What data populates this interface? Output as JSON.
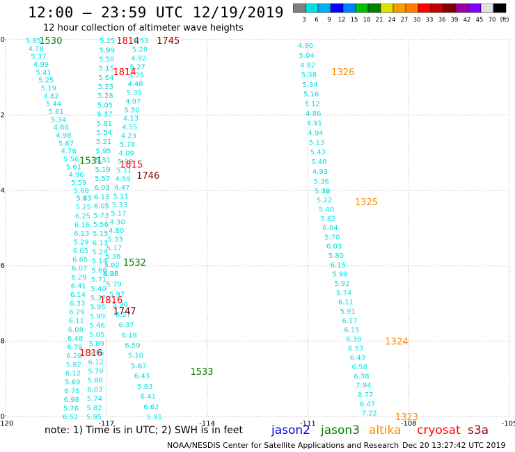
{
  "header": {
    "title": "12:00 – 23:59 UTC 12/19/2019",
    "subtitle": "12 hour collection of altimeter wave heights"
  },
  "colorbar": {
    "colors": [
      "#808080",
      "#00e0e0",
      "#00b0f0",
      "#0000ff",
      "#0080ff",
      "#00c000",
      "#008000",
      "#e0e000",
      "#f0a000",
      "#ff8000",
      "#ff0000",
      "#c00000",
      "#800000",
      "#a000a0",
      "#8000ff",
      "#e0e0e0",
      "#000000"
    ],
    "labels": [
      "3",
      "6",
      "9",
      "12",
      "15",
      "18",
      "21",
      "24",
      "27",
      "30",
      "33",
      "36",
      "39",
      "42",
      "45",
      "70",
      "(ft)"
    ]
  },
  "chart_data": {
    "type": "scatter",
    "xlim": [
      -120,
      -105
    ],
    "ylim": [
      -10,
      0
    ],
    "x_ticks": [
      "-120",
      "-117",
      "-114",
      "-111",
      "-108",
      "-105"
    ],
    "y_ticks": [
      "0",
      "-2",
      "-4",
      "-6",
      "-8",
      "-10"
    ],
    "grid": true,
    "series": [
      {
        "name": "jason2",
        "color": "#0000e0",
        "points": []
      },
      {
        "name": "jason3",
        "color": "#008000",
        "passes": [
          {
            "label": "1530",
            "lon": -119.0,
            "lat": -0.02
          },
          {
            "label": "1531",
            "lon": -117.8,
            "lat": -3.2
          },
          {
            "label": "1532",
            "lon": -116.5,
            "lat": -5.9
          },
          {
            "label": "1533",
            "lon": -114.5,
            "lat": -8.8
          }
        ]
      },
      {
        "name": "altika",
        "color": "#ff8c00",
        "passes": [
          {
            "label": "1326",
            "lon": -110.3,
            "lat": -0.85
          },
          {
            "label": "1325",
            "lon": -109.6,
            "lat": -4.3
          },
          {
            "label": "1324",
            "lon": -108.7,
            "lat": -8.0
          },
          {
            "label": "1323",
            "lon": -108.4,
            "lat": -10.0
          }
        ]
      },
      {
        "name": "cryosat",
        "color": "#ff0000",
        "passes": [
          {
            "label": "1814",
            "lon": -116.7,
            "lat": -0.02
          },
          {
            "label": "1814",
            "lon": -116.8,
            "lat": -0.85
          },
          {
            "label": "1815",
            "lon": -116.6,
            "lat": -3.3
          },
          {
            "label": "1816",
            "lon": -117.2,
            "lat": -6.9
          },
          {
            "label": "1816",
            "lon": -117.8,
            "lat": -8.3
          }
        ]
      },
      {
        "name": "s3a",
        "color": "#8b0000",
        "passes": [
          {
            "label": "1745",
            "lon": -115.5,
            "lat": -0.02
          },
          {
            "label": "1746",
            "lon": -116.1,
            "lat": -3.6
          },
          {
            "label": "1747",
            "lon": -116.8,
            "lat": -7.2
          }
        ]
      }
    ],
    "swh_tracks": [
      {
        "color": "#00e0e0",
        "lon0": -119.4,
        "lat0": -0.02,
        "lon1": -117.9,
        "lat1": -4.2,
        "values": [
          "5.85",
          "4.78",
          "5.37",
          "4.99",
          "5.41",
          "5.25",
          "5.19",
          "4.82",
          "5.44",
          "5.61",
          "5.34",
          "4.66",
          "4.98",
          "5.67",
          "4.76",
          "5.56",
          "5.61",
          "4.96",
          "5.59",
          "5.68",
          "5.83"
        ]
      },
      {
        "color": "#00e0e0",
        "lon0": -117.9,
        "lat0": -4.2,
        "lon1": -118.3,
        "lat1": -10.0,
        "values": [
          "5.43",
          "5.25",
          "6.25",
          "6.16",
          "6.13",
          "5.29",
          "6.05",
          "6.65",
          "6.07",
          "6.29",
          "6.41",
          "6.14",
          "6.33",
          "6.29",
          "6.11",
          "6.08",
          "6.48",
          "6.79",
          "6.28",
          "5.82",
          "6.12",
          "5.69",
          "6.75",
          "6.98",
          "5.76",
          "6.52"
        ]
      },
      {
        "color": "#00e0e0",
        "lon0": -117.2,
        "lat0": -0.02,
        "lon1": -117.6,
        "lat1": -10.0,
        "values": [
          "5.25",
          "5.99",
          "5.50",
          "5.15",
          "5.64",
          "5.23",
          "5.28",
          "5.05",
          "6.37",
          "5.81",
          "5.54",
          "5.21",
          "5.95",
          "5.51",
          "5.19",
          "5.57",
          "6.03",
          "6.13",
          "6.05",
          "5.73",
          "5.56",
          "5.15",
          "6.13",
          "5.24",
          "5.14",
          "5.66",
          "5.71",
          "5.40",
          "5.37",
          "5.95",
          "5.99",
          "5.46",
          "5.05",
          "5.89",
          "5.96",
          "6.12",
          "5.79",
          "5.86",
          "6.03",
          "5.74",
          "5.82",
          "5.95"
        ]
      },
      {
        "color": "#00e0e0",
        "lon0": -116.2,
        "lat0": -0.02,
        "lon1": -117.1,
        "lat1": -6.2,
        "values": [
          "5.53",
          "5.28",
          "4.92",
          "5.27",
          "4.75",
          "4.48",
          "5.35",
          "4.97",
          "5.50",
          "4.13",
          "4.55",
          "4.23",
          "5.78",
          "4.09",
          "5.08",
          "5.11",
          "4.59",
          "4.47",
          "5.11",
          "5.33",
          "5.17",
          "4.30",
          "4.80",
          "5.33",
          "5.17",
          "5.36",
          "5.02",
          "4.95"
        ]
      },
      {
        "color": "#00e0e0",
        "lon0": -117.1,
        "lat0": -6.2,
        "lon1": -115.8,
        "lat1": -10.0,
        "values": [
          "6.28",
          "5.79",
          "5.97",
          "5.90",
          "6.27",
          "6.37",
          "6.18",
          "6.59",
          "5.10",
          "5.67",
          "6.43",
          "5.83",
          "6.41",
          "6.62",
          "5.91"
        ]
      },
      {
        "color": "#00e0e0",
        "lon0": -111.3,
        "lat0": -0.15,
        "lon1": -110.8,
        "lat1": -4.0,
        "values": [
          "4.90",
          "5.04",
          "4.82",
          "5.38",
          "5.34",
          "5.16",
          "5.12",
          "4.86",
          "4.91",
          "4.94",
          "5.13",
          "5.43",
          "5.40",
          "4.93",
          "5.36",
          "5.12"
        ]
      },
      {
        "color": "#00e0e0",
        "lon0": -110.8,
        "lat0": -4.0,
        "lon1": -109.4,
        "lat1": -9.9,
        "values": [
          "5.36",
          "5.22",
          "5.40",
          "5.62",
          "6.04",
          "5.70",
          "6.03",
          "5.80",
          "6.15",
          "5.99",
          "5.92",
          "5.74",
          "6.11",
          "5.91",
          "6.17",
          "6.15",
          "6.39",
          "6.53",
          "6.43",
          "6.58",
          "6.38",
          "7.94",
          "8.77",
          "6.47",
          "7.22"
        ]
      }
    ]
  },
  "footer": {
    "note": "note:  1) Time is in UTC;  2) SWH is in feet",
    "satellites": [
      {
        "label": "jason2",
        "color": "#0000e0"
      },
      {
        "label": "jason3",
        "color": "#008000"
      },
      {
        "label": "altika",
        "color": "#ff8c00"
      },
      {
        "label": "cryosat",
        "color": "#ff0000"
      },
      {
        "label": "s3a",
        "color": "#8b0000"
      }
    ],
    "credit": "NOAA/NESDIS Center for Satellite Applications and Research",
    "timestamp": "Dec 20 13:27:42 UTC 2019"
  }
}
